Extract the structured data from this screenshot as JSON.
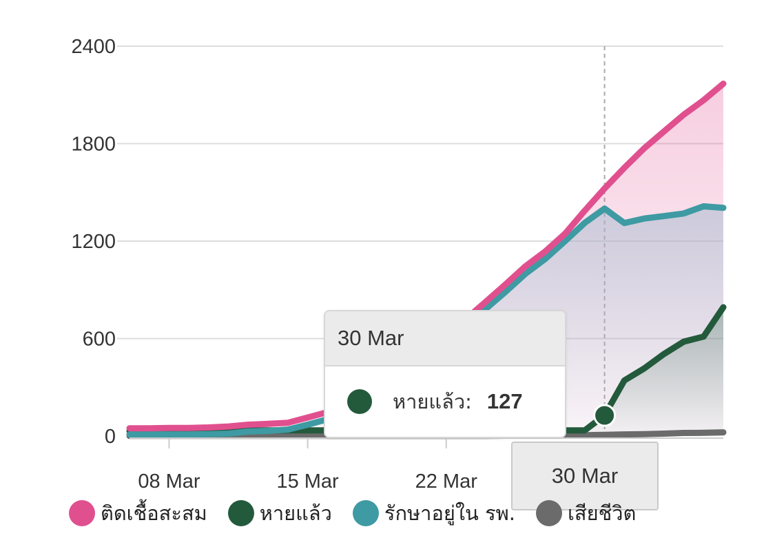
{
  "chart_data": {
    "type": "area",
    "x": [
      "06 Mar",
      "07 Mar",
      "08 Mar",
      "09 Mar",
      "10 Mar",
      "11 Mar",
      "12 Mar",
      "13 Mar",
      "14 Mar",
      "15 Mar",
      "16 Mar",
      "17 Mar",
      "18 Mar",
      "19 Mar",
      "20 Mar",
      "21 Mar",
      "22 Mar",
      "23 Mar",
      "24 Mar",
      "25 Mar",
      "26 Mar",
      "27 Mar",
      "28 Mar",
      "29 Mar",
      "30 Mar",
      "31 Mar",
      "01 Apr",
      "02 Apr",
      "03 Apr",
      "04 Apr",
      "05 Apr"
    ],
    "series": [
      {
        "name": "ติดเชื้อสะสม",
        "color": "#e0508f",
        "values": [
          48,
          48,
          50,
          50,
          53,
          59,
          70,
          75,
          82,
          114,
          147,
          177,
          212,
          272,
          322,
          411,
          599,
          721,
          827,
          934,
          1045,
          1136,
          1245,
          1388,
          1524,
          1651,
          1771,
          1875,
          1978,
          2067,
          2169
        ]
      },
      {
        "name": "รักษาอยู่ใน รพ.",
        "color": "#3e9aa3",
        "values": [
          10,
          10,
          10,
          10,
          12,
          15,
          28,
          32,
          40,
          70,
          103,
          136,
          169,
          230,
          280,
          366,
          559,
          680,
          783,
          888,
          999,
          1090,
          1199,
          1313,
          1400,
          1311,
          1339,
          1354,
          1370,
          1414,
          1405
        ]
      },
      {
        "name": "หายแล้ว",
        "color": "#245a3c",
        "values": [
          31,
          31,
          31,
          31,
          32,
          34,
          34,
          35,
          35,
          35,
          35,
          35,
          35,
          35,
          35,
          35,
          35,
          35,
          35,
          35,
          35,
          35,
          35,
          35,
          127,
          342,
          416,
          505,
          581,
          612,
          793
        ]
      },
      {
        "name": "เสียชีวิต",
        "color": "#6b6b6b",
        "values": [
          1,
          1,
          1,
          1,
          1,
          1,
          1,
          1,
          1,
          1,
          1,
          1,
          1,
          1,
          1,
          1,
          1,
          1,
          1,
          2,
          3,
          3,
          4,
          5,
          7,
          10,
          12,
          15,
          19,
          20,
          23
        ]
      }
    ],
    "ylim": [
      0,
      2400
    ],
    "yticks": [
      "0",
      "600",
      "1200",
      "1800",
      "2400"
    ],
    "xticks": [
      "08 Mar",
      "15 Mar",
      "22 Mar"
    ],
    "grid": true,
    "legend": "bottom"
  },
  "tooltip": {
    "date": "30 Mar",
    "series_label": "หายแล้ว:",
    "value": "127",
    "color": "#245a3c"
  },
  "crosshair_label": "30 Mar",
  "legend_items": [
    {
      "label": "ติดเชื้อสะสม",
      "color": "#e0508f"
    },
    {
      "label": "หายแล้ว",
      "color": "#245a3c"
    },
    {
      "label": "รักษาอยู่ใน รพ.",
      "color": "#3e9aa3"
    },
    {
      "label": "เสียชีวิต",
      "color": "#6b6b6b"
    }
  ]
}
